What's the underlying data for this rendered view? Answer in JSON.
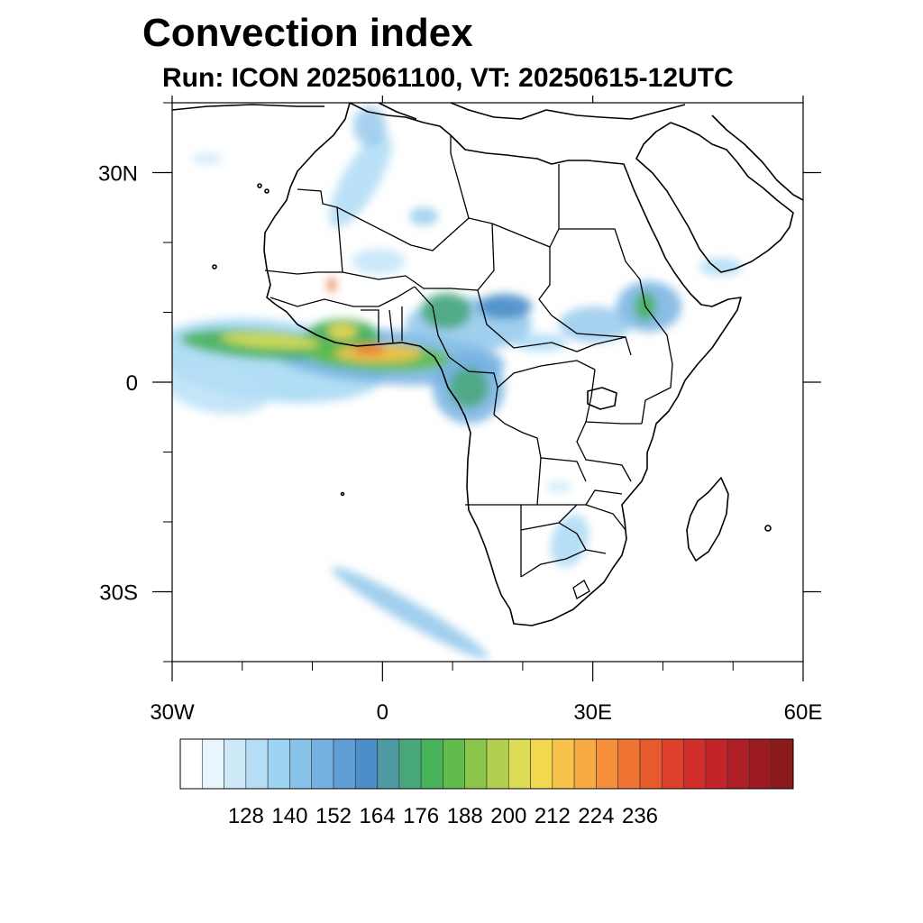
{
  "title": "Convection index",
  "subtitle": "Run: ICON 2025061100,  VT: 20250615-12UTC",
  "map": {
    "lon_range": [
      -30,
      60
    ],
    "lat_range": [
      -40,
      40
    ],
    "x_ticks": [
      {
        "value": -30,
        "label": "30W"
      },
      {
        "value": 0,
        "label": "0"
      },
      {
        "value": 30,
        "label": "30E"
      },
      {
        "value": 60,
        "label": "60E"
      }
    ],
    "y_ticks": [
      {
        "value": 30,
        "label": "30N"
      },
      {
        "value": 0,
        "label": "0"
      },
      {
        "value": -30,
        "label": "30S"
      }
    ],
    "coastline_color": "#000000"
  },
  "colorbar": {
    "labels": [
      "128",
      "140",
      "152",
      "164",
      "176",
      "188",
      "200",
      "212",
      "224",
      "236"
    ],
    "colors": [
      "#ffffff",
      "#e8f5fc",
      "#cde9f8",
      "#b5def6",
      "#9dd4f3",
      "#8ac3ea",
      "#75b2e2",
      "#5f9fd6",
      "#4b8ec9",
      "#4e9aa2",
      "#49a77c",
      "#47b35a",
      "#62bc4b",
      "#8cc54b",
      "#b3cf4f",
      "#dcdd55",
      "#f1d84f",
      "#f7c34a",
      "#f8ab43",
      "#f58f3b",
      "#f07434",
      "#e75a2e",
      "#dd402b",
      "#d22f2c",
      "#c2242a",
      "#ae1e26",
      "#9c1a22",
      "#8b1a1c"
    ]
  }
}
